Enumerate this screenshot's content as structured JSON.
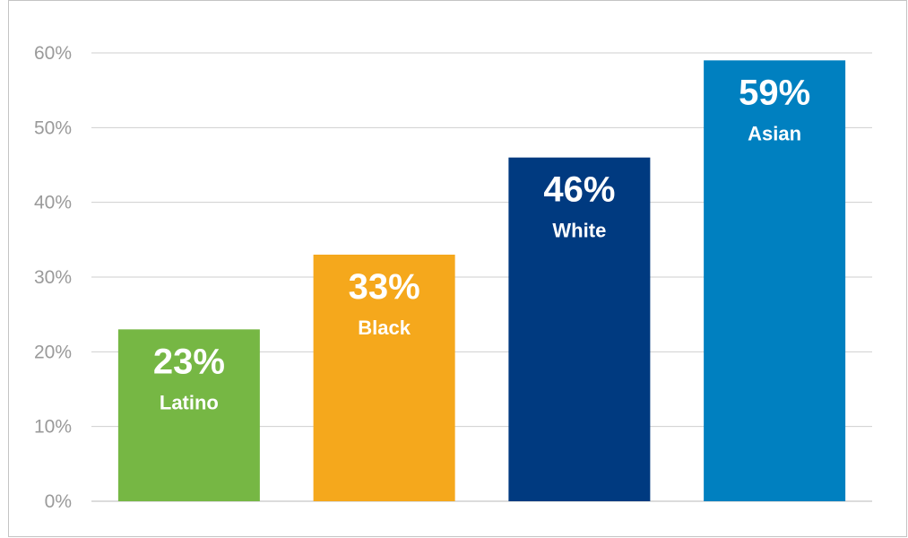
{
  "chart_data": {
    "type": "bar",
    "categories": [
      "Latino",
      "Black",
      "White",
      "Asian"
    ],
    "values": [
      23,
      33,
      46,
      59
    ],
    "value_labels": [
      "23%",
      "33%",
      "46%",
      "59%"
    ],
    "colors": [
      "#76b744",
      "#f5a81c",
      "#003a80",
      "#0080c0"
    ],
    "yticks": [
      "0%",
      "10%",
      "20%",
      "30%",
      "40%",
      "50%",
      "60%"
    ],
    "ylim": [
      0,
      60
    ],
    "grid": true,
    "legend": "none",
    "title": "",
    "xlabel": "",
    "ylabel": ""
  }
}
